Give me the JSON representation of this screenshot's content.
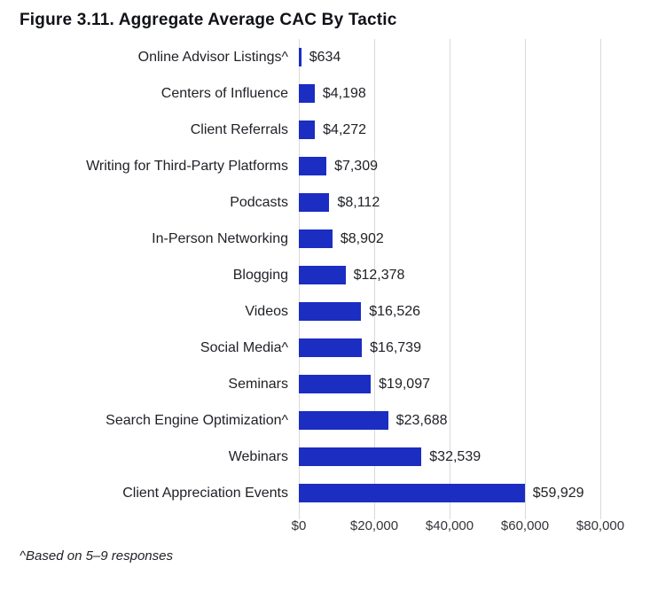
{
  "title": "Figure 3.11. Aggregate Average CAC By Tactic",
  "footnote": "^Based on 5–9 responses",
  "colors": {
    "bar": "#1c2dc2",
    "gridline": "#d9d9d9",
    "title_text": "#101218",
    "label_text": "#202227"
  },
  "chart_data": {
    "type": "bar",
    "orientation": "horizontal",
    "title": "Figure 3.11. Aggregate Average CAC By Tactic",
    "categories": [
      "Online Advisor Listings^",
      "Centers of Influence",
      "Client Referrals",
      "Writing for Third-Party Platforms",
      "Podcasts",
      "In-Person Networking",
      "Blogging",
      "Videos",
      "Social Media^",
      "Seminars",
      "Search Engine Optimization^",
      "Webinars",
      "Client Appreciation Events"
    ],
    "values": [
      634,
      4198,
      4272,
      7309,
      8112,
      8902,
      12378,
      16526,
      16739,
      19097,
      23688,
      32539,
      59929
    ],
    "value_labels": [
      "$634",
      "$4,198",
      "$4,272",
      "$7,309",
      "$8,112",
      "$8,902",
      "$12,378",
      "$16,526",
      "$16,739",
      "$19,097",
      "$23,688",
      "$32,539",
      "$59,929"
    ],
    "xlabel": "",
    "ylabel": "",
    "xlim": [
      0,
      80000
    ],
    "x_tick_values": [
      0,
      20000,
      40000,
      60000,
      80000
    ],
    "x_tick_labels": [
      "$0",
      "$20,000",
      "$40,000",
      "$60,000",
      "$80,000"
    ],
    "grid": "vertical-only",
    "legend": "none",
    "annotations": [
      "^Based on 5–9 responses"
    ]
  }
}
